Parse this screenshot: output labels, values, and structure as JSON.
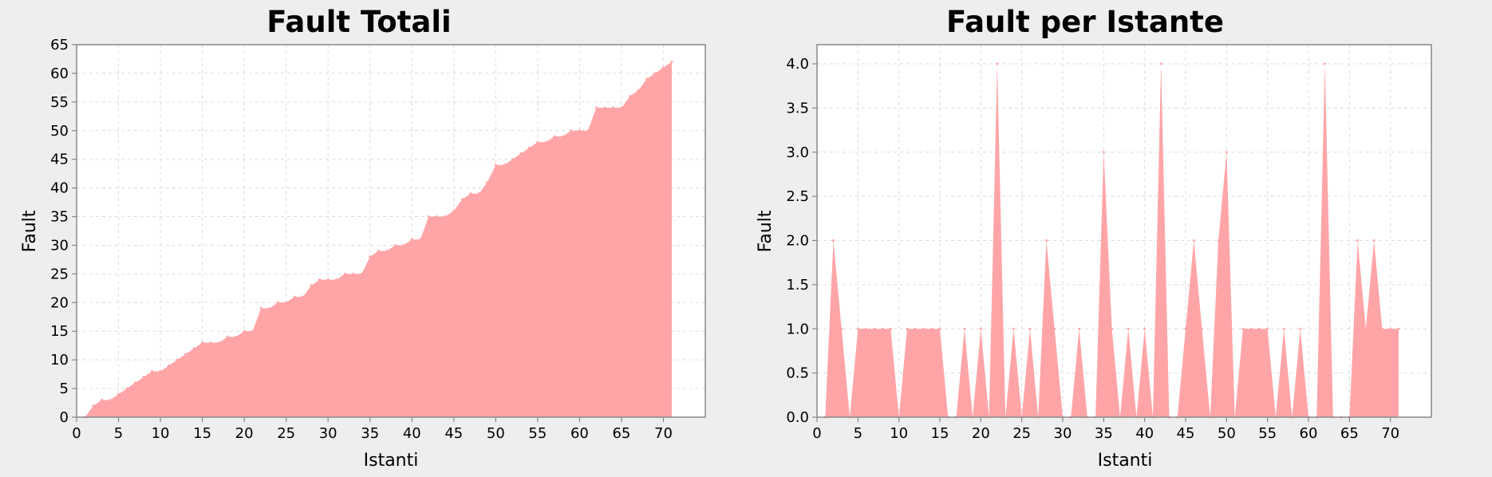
{
  "chart_data": [
    {
      "type": "area",
      "title": "Fault Totali",
      "xlabel": "Istanti",
      "ylabel": "Fault",
      "xlim": [
        0,
        75
      ],
      "ylim": [
        0,
        65
      ],
      "x_ticks": [
        0,
        5,
        10,
        15,
        20,
        25,
        30,
        35,
        40,
        45,
        50,
        55,
        60,
        65,
        70
      ],
      "y_ticks": [
        "0",
        "5",
        "10",
        "15",
        "20",
        "25",
        "30",
        "35",
        "40",
        "45",
        "50",
        "55",
        "60",
        "65"
      ],
      "grid": true,
      "color": "#ffa5a8",
      "x": [
        1,
        2,
        3,
        4,
        5,
        6,
        7,
        8,
        9,
        10,
        11,
        12,
        13,
        14,
        15,
        16,
        17,
        18,
        19,
        20,
        21,
        22,
        23,
        24,
        25,
        26,
        27,
        28,
        29,
        30,
        31,
        32,
        33,
        34,
        35,
        36,
        37,
        38,
        39,
        40,
        41,
        42,
        43,
        44,
        45,
        46,
        47,
        48,
        49,
        50,
        51,
        52,
        53,
        54,
        55,
        56,
        57,
        58,
        59,
        60,
        61,
        62,
        63,
        64,
        65,
        66,
        67,
        68,
        69,
        70,
        71
      ],
      "values": [
        0,
        2,
        3,
        3,
        4,
        5,
        6,
        7,
        8,
        8,
        9,
        10,
        11,
        12,
        13,
        13,
        13,
        14,
        14,
        15,
        15,
        19,
        19,
        20,
        20,
        21,
        21,
        23,
        24,
        24,
        24,
        25,
        25,
        25,
        28,
        29,
        29,
        30,
        30,
        31,
        31,
        35,
        35,
        35,
        36,
        38,
        39,
        39,
        41,
        44,
        44,
        45,
        46,
        47,
        48,
        48,
        49,
        49,
        50,
        50,
        50,
        54,
        54,
        54,
        54,
        56,
        57,
        59,
        60,
        61,
        62
      ]
    },
    {
      "type": "area",
      "title": "Fault per Istante",
      "xlabel": "Istanti",
      "ylabel": "Fault",
      "xlim": [
        0,
        75
      ],
      "ylim": [
        0,
        4.2
      ],
      "x_ticks": [
        0,
        5,
        10,
        15,
        20,
        25,
        30,
        35,
        40,
        45,
        50,
        55,
        60,
        65,
        70
      ],
      "y_ticks": [
        "0.0",
        "0.5",
        "1.0",
        "1.5",
        "2.0",
        "2.5",
        "3.0",
        "3.5",
        "4.0"
      ],
      "grid": true,
      "color": "#ffa5a8",
      "x": [
        1,
        2,
        3,
        4,
        5,
        6,
        7,
        8,
        9,
        10,
        11,
        12,
        13,
        14,
        15,
        16,
        17,
        18,
        19,
        20,
        21,
        22,
        23,
        24,
        25,
        26,
        27,
        28,
        29,
        30,
        31,
        32,
        33,
        34,
        35,
        36,
        37,
        38,
        39,
        40,
        41,
        42,
        43,
        44,
        45,
        46,
        47,
        48,
        49,
        50,
        51,
        52,
        53,
        54,
        55,
        56,
        57,
        58,
        59,
        60,
        61,
        62,
        63,
        64,
        65,
        66,
        67,
        68,
        69,
        70,
        71
      ],
      "values": [
        0,
        2,
        1,
        0,
        1,
        1,
        1,
        1,
        1,
        0,
        1,
        1,
        1,
        1,
        1,
        0,
        0,
        1,
        0,
        1,
        0,
        4,
        0,
        1,
        0,
        1,
        0,
        2,
        1,
        0,
        0,
        1,
        0,
        0,
        3,
        1,
        0,
        1,
        0,
        1,
        0,
        4,
        0,
        0,
        1,
        2,
        1,
        0,
        2,
        3,
        0,
        1,
        1,
        1,
        1,
        0,
        1,
        0,
        1,
        0,
        0,
        4,
        0,
        0,
        0,
        2,
        1,
        2,
        1,
        1,
        1
      ]
    }
  ]
}
